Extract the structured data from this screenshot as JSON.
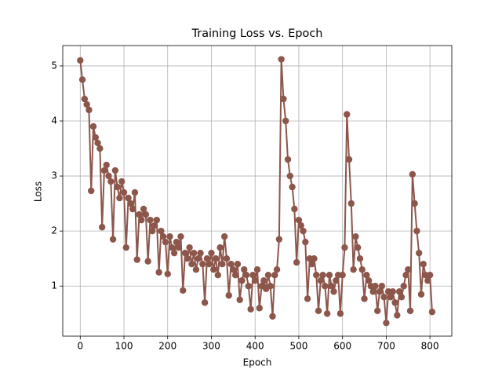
{
  "chart_data": {
    "type": "line",
    "title": "Training Loss vs. Epoch",
    "x_label": "Epoch",
    "y_label": "Loss",
    "x": [
      0,
      5,
      10,
      15,
      20,
      25,
      30,
      35,
      40,
      45,
      50,
      55,
      60,
      65,
      70,
      75,
      80,
      85,
      90,
      95,
      100,
      105,
      110,
      115,
      120,
      125,
      130,
      135,
      140,
      145,
      150,
      155,
      160,
      165,
      170,
      175,
      180,
      185,
      190,
      195,
      200,
      205,
      210,
      215,
      220,
      225,
      230,
      235,
      240,
      245,
      250,
      255,
      260,
      265,
      270,
      275,
      280,
      285,
      290,
      295,
      300,
      305,
      310,
      315,
      320,
      325,
      330,
      335,
      340,
      345,
      350,
      355,
      360,
      365,
      370,
      375,
      380,
      385,
      390,
      395,
      400,
      405,
      410,
      415,
      420,
      425,
      430,
      435,
      440,
      445,
      450,
      455,
      460,
      465,
      470,
      475,
      480,
      485,
      490,
      495,
      500,
      505,
      510,
      515,
      520,
      525,
      530,
      535,
      540,
      545,
      550,
      555,
      560,
      565,
      570,
      575,
      580,
      585,
      590,
      595,
      600,
      605,
      610,
      615,
      620,
      625,
      630,
      635,
      640,
      645,
      650,
      655,
      660,
      665,
      670,
      675,
      680,
      685,
      690,
      695,
      700,
      705,
      710,
      715,
      720,
      725,
      730,
      735,
      740,
      745,
      750,
      755,
      760,
      765,
      770,
      775,
      780,
      785,
      790,
      795,
      800,
      805
    ],
    "values": [
      5.1,
      4.75,
      4.4,
      4.3,
      4.2,
      2.73,
      3.9,
      3.7,
      3.6,
      3.5,
      2.07,
      3.1,
      3.2,
      3.0,
      2.9,
      1.85,
      3.1,
      2.8,
      2.6,
      2.9,
      2.7,
      1.7,
      2.6,
      2.5,
      2.4,
      2.7,
      1.48,
      2.3,
      2.2,
      2.4,
      2.3,
      1.45,
      2.2,
      2.0,
      2.1,
      2.2,
      1.25,
      2.0,
      1.9,
      1.8,
      1.22,
      1.9,
      1.7,
      1.6,
      1.8,
      1.7,
      1.9,
      0.92,
      1.6,
      1.5,
      1.7,
      1.4,
      1.6,
      1.3,
      1.5,
      1.6,
      1.4,
      0.7,
      1.5,
      1.4,
      1.6,
      1.3,
      1.5,
      1.2,
      1.7,
      1.4,
      1.9,
      1.5,
      0.83,
      1.4,
      1.3,
      1.2,
      1.4,
      0.75,
      1.1,
      1.3,
      1.2,
      1.0,
      0.58,
      1.2,
      1.1,
      1.3,
      0.6,
      1.0,
      1.1,
      0.95,
      1.2,
      1.0,
      0.45,
      1.2,
      1.3,
      1.85,
      5.12,
      4.4,
      4.0,
      3.3,
      3.0,
      2.8,
      2.4,
      1.43,
      2.2,
      2.1,
      2.0,
      1.8,
      0.77,
      1.5,
      1.4,
      1.5,
      1.2,
      0.55,
      1.1,
      1.2,
      1.0,
      0.5,
      1.2,
      1.0,
      0.9,
      1.1,
      1.2,
      0.5,
      1.2,
      1.7,
      4.12,
      3.3,
      2.5,
      1.3,
      1.9,
      1.7,
      1.5,
      1.3,
      0.77,
      1.2,
      1.1,
      1.0,
      0.9,
      1.0,
      0.55,
      0.9,
      1.0,
      0.8,
      0.33,
      0.9,
      0.8,
      0.9,
      0.7,
      0.47,
      0.9,
      0.8,
      1.0,
      1.2,
      1.3,
      0.55,
      3.03,
      2.5,
      2.0,
      1.6,
      0.85,
      1.4,
      1.2,
      1.1,
      1.2,
      0.53
    ],
    "color": "#8c564b",
    "xlim": [
      -40,
      850
    ],
    "xticks": [
      0,
      100,
      200,
      300,
      400,
      500,
      600,
      700,
      800
    ],
    "ylim": [
      0.09,
      5.37
    ],
    "yticks": [
      1,
      2,
      3,
      4,
      5
    ],
    "grid": true
  }
}
